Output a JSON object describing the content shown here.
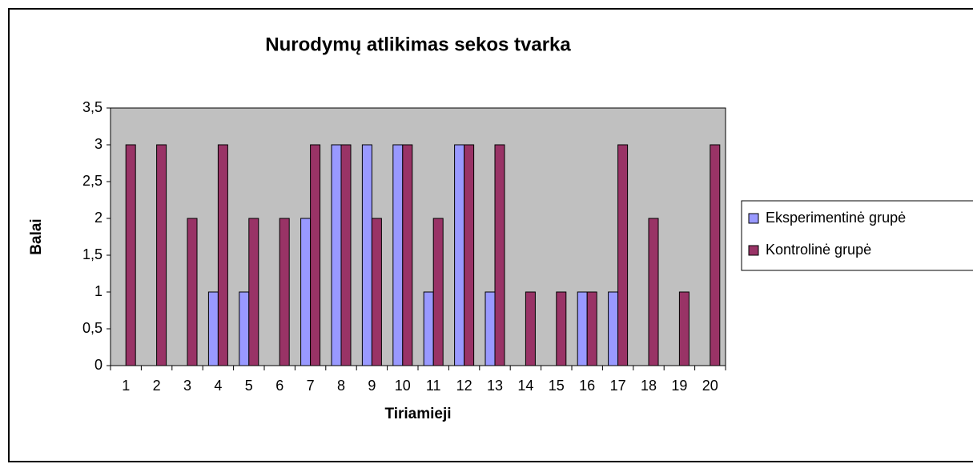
{
  "chart_data": {
    "type": "bar",
    "title": "Nurodymų atlikimas sekos tvarka",
    "x_label": "Tiriamieji",
    "y_label": "Balai",
    "categories": [
      "1",
      "2",
      "3",
      "4",
      "5",
      "6",
      "7",
      "8",
      "9",
      "10",
      "11",
      "12",
      "13",
      "14",
      "15",
      "16",
      "17",
      "18",
      "19",
      "20"
    ],
    "series": [
      {
        "name": "Eksperimentinė grupė",
        "color": "#9999ff",
        "values": [
          0,
          0,
          0,
          1,
          1,
          0,
          2,
          3,
          3,
          3,
          1,
          3,
          1,
          0,
          0,
          1,
          1,
          0,
          0,
          0
        ]
      },
      {
        "name": "Kontrolinė grupė",
        "color": "#993366",
        "values": [
          3,
          3,
          2,
          3,
          2,
          2,
          3,
          3,
          2,
          3,
          2,
          3,
          3,
          1,
          1,
          1,
          3,
          2,
          1,
          3
        ]
      }
    ],
    "ylim": [
      0,
      3.5
    ],
    "yticks": [
      0,
      {
        "value": 0.5,
        "label": "0,5"
      },
      1,
      {
        "value": 1.5,
        "label": "1,5"
      },
      2,
      {
        "value": 2.5,
        "label": "2,5"
      },
      3,
      {
        "value": 3.5,
        "label": "3,5"
      }
    ],
    "legend": "right",
    "plot_background": "#c0c0c0"
  }
}
